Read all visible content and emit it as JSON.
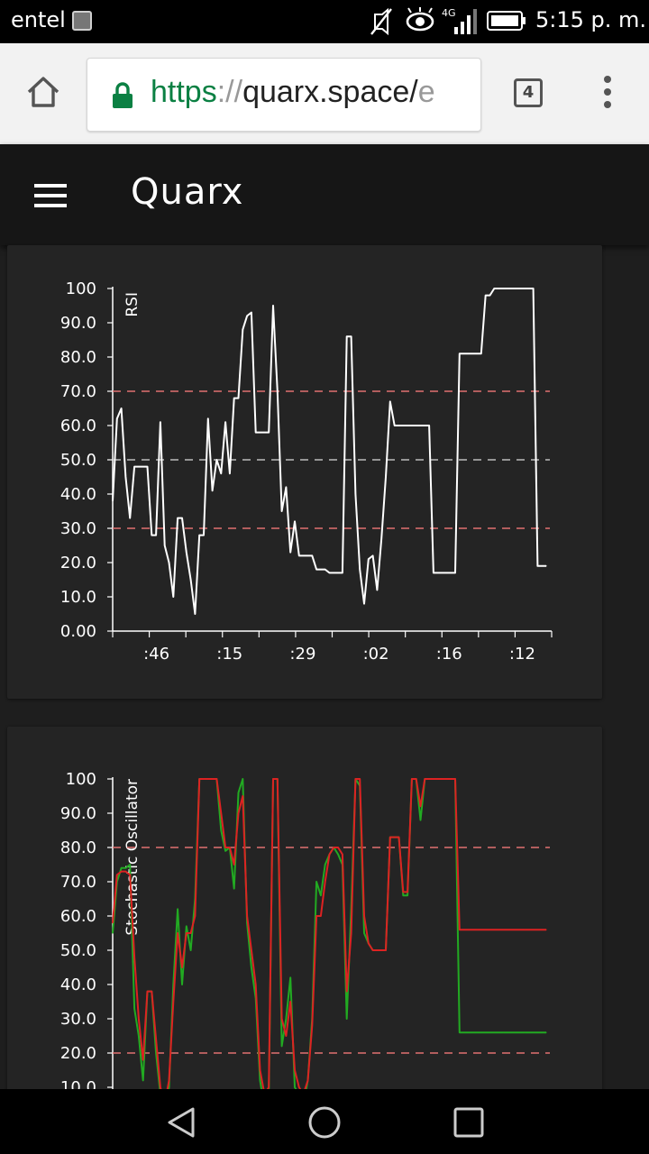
{
  "status_bar": {
    "carrier": "entel",
    "network": "4G",
    "time": "5:15 p. m.",
    "icons": [
      "sim-card-icon",
      "mute-icon",
      "eye-icon",
      "signal-icon",
      "battery-icon"
    ]
  },
  "browser": {
    "url_scheme": "https",
    "url_sep": "://",
    "url_host": "quarx.space/",
    "url_fade": "e",
    "tab_count": "4",
    "accent_color": "#0b8043"
  },
  "app": {
    "title": "Quarx",
    "background_color": "#1e1e1e",
    "card_color": "#242424"
  },
  "chart_data": [
    {
      "type": "line",
      "ylabel": "RSI",
      "ylim": [
        0,
        100
      ],
      "yticks": [
        "0.00",
        "10.0",
        "20.0",
        "30.0",
        "40.0",
        "50.0",
        "60.0",
        "70.0",
        "80.0",
        "90.0",
        "100"
      ],
      "xticks": [
        ":46",
        ":15",
        ":29",
        ":02",
        ":16",
        ":12"
      ],
      "reference_lines": [
        {
          "value": 70,
          "color": "#e07070"
        },
        {
          "value": 50,
          "color": "#bbbbbb"
        },
        {
          "value": 30,
          "color": "#e07070"
        }
      ],
      "series": [
        {
          "color": "#ffffff",
          "x": [
            0,
            1,
            2,
            3,
            4,
            5,
            6,
            7,
            8,
            9,
            10,
            11,
            12,
            13,
            14,
            15,
            16,
            17,
            18,
            19,
            20,
            21,
            22,
            23,
            24,
            25,
            26,
            27,
            28,
            29,
            30,
            31,
            32,
            33,
            34,
            35,
            36,
            37,
            38,
            39,
            40,
            41,
            42,
            43,
            44,
            45,
            46,
            47,
            48,
            49,
            50,
            51,
            52,
            53,
            54,
            55,
            56,
            57,
            58,
            59,
            60,
            61,
            62,
            63,
            64,
            65,
            66,
            67,
            68,
            69,
            70,
            71,
            72,
            73,
            74,
            75,
            76,
            77,
            78,
            79,
            80,
            81,
            82,
            83,
            84,
            85,
            86,
            87,
            88,
            89,
            90,
            91,
            92,
            93,
            94,
            95,
            96,
            97,
            98,
            99,
            100
          ],
          "y": [
            38,
            62,
            65,
            45,
            33,
            48,
            48,
            48,
            48,
            28,
            28,
            61,
            25,
            20,
            10,
            33,
            33,
            23,
            15,
            5,
            28,
            28,
            62,
            41,
            50,
            46,
            61,
            46,
            68,
            68,
            88,
            92,
            93,
            58,
            58,
            58,
            58,
            95,
            70,
            35,
            42,
            23,
            32,
            22,
            22,
            22,
            22,
            18,
            18,
            18,
            17,
            17,
            17,
            17,
            86,
            86,
            40,
            18,
            8,
            21,
            22,
            12,
            27,
            45,
            67,
            60,
            60,
            60,
            60,
            60,
            60,
            60,
            60,
            60,
            17,
            17,
            17,
            17,
            17,
            17,
            81,
            81,
            81,
            81,
            81,
            81,
            98,
            98,
            100,
            100,
            100,
            100,
            100,
            100,
            100,
            100,
            100,
            100,
            19,
            19,
            19
          ]
        }
      ]
    },
    {
      "type": "line",
      "ylabel": "Stochastic Oscillator",
      "ylim": [
        0,
        100
      ],
      "yticks": [
        "10.0",
        "20.0",
        "30.0",
        "40.0",
        "50.0",
        "60.0",
        "70.0",
        "80.0",
        "90.0",
        "100"
      ],
      "reference_lines": [
        {
          "value": 80,
          "color": "#e07070"
        },
        {
          "value": 20,
          "color": "#e07070"
        }
      ],
      "series": [
        {
          "color": "#22aa22",
          "x": [
            0,
            1,
            2,
            3,
            4,
            5,
            6,
            7,
            8,
            9,
            10,
            11,
            12,
            13,
            14,
            15,
            16,
            17,
            18,
            19,
            20,
            21,
            22,
            23,
            24,
            25,
            26,
            27,
            28,
            29,
            30,
            31,
            32,
            33,
            34,
            35,
            36,
            37,
            38,
            39,
            40,
            41,
            42,
            43,
            44,
            45,
            46,
            47,
            48,
            49,
            50,
            51,
            52,
            53,
            54,
            55,
            56,
            57,
            58,
            59,
            60,
            61,
            62,
            63,
            64,
            65,
            66,
            67,
            68,
            69,
            70,
            71,
            72,
            73,
            74,
            75,
            76,
            77,
            78,
            79,
            80,
            81,
            82,
            83,
            84,
            85,
            86,
            87,
            88,
            89,
            90,
            91,
            92,
            93,
            94,
            95,
            96,
            97,
            98,
            99,
            100
          ],
          "y": [
            55,
            70,
            74,
            74,
            75,
            33,
            25,
            12,
            38,
            38,
            20,
            8,
            3,
            10,
            40,
            62,
            40,
            57,
            50,
            65,
            100,
            100,
            100,
            100,
            100,
            85,
            79,
            80,
            68,
            96,
            100,
            58,
            45,
            36,
            12,
            4,
            8,
            100,
            100,
            22,
            30,
            42,
            10,
            8,
            5,
            12,
            30,
            70,
            66,
            75,
            78,
            80,
            78,
            75,
            30,
            62,
            100,
            98,
            55,
            52,
            50,
            50,
            50,
            50,
            83,
            83,
            83,
            66,
            66,
            100,
            100,
            88,
            100,
            100,
            100,
            100,
            100,
            100,
            100,
            100,
            26,
            26,
            26,
            26,
            26,
            26,
            26,
            26,
            26,
            26,
            26,
            26,
            26,
            26,
            26,
            26,
            26,
            26,
            26,
            26,
            26
          ]
        },
        {
          "color": "#dd2222",
          "x": [
            0,
            1,
            2,
            3,
            4,
            5,
            6,
            7,
            8,
            9,
            10,
            11,
            12,
            13,
            14,
            15,
            16,
            17,
            18,
            19,
            20,
            21,
            22,
            23,
            24,
            25,
            26,
            27,
            28,
            29,
            30,
            31,
            32,
            33,
            34,
            35,
            36,
            37,
            38,
            39,
            40,
            41,
            42,
            43,
            44,
            45,
            46,
            47,
            48,
            49,
            50,
            51,
            52,
            53,
            54,
            55,
            56,
            57,
            58,
            59,
            60,
            61,
            62,
            63,
            64,
            65,
            66,
            67,
            68,
            69,
            70,
            71,
            72,
            73,
            74,
            75,
            76,
            77,
            78,
            79,
            80,
            81,
            82,
            83,
            84,
            85,
            86,
            87,
            88,
            89,
            90,
            91,
            92,
            93,
            94,
            95,
            96,
            97,
            98,
            99,
            100
          ],
          "y": [
            58,
            72,
            73,
            73,
            72,
            48,
            30,
            18,
            38,
            38,
            24,
            10,
            5,
            12,
            35,
            55,
            45,
            55,
            55,
            60,
            100,
            100,
            100,
            100,
            100,
            90,
            80,
            80,
            75,
            90,
            95,
            60,
            50,
            40,
            15,
            8,
            10,
            100,
            100,
            30,
            25,
            35,
            15,
            10,
            8,
            12,
            28,
            60,
            60,
            70,
            78,
            80,
            80,
            78,
            38,
            55,
            100,
            100,
            60,
            52,
            50,
            50,
            50,
            50,
            83,
            83,
            83,
            67,
            67,
            100,
            100,
            92,
            100,
            100,
            100,
            100,
            100,
            100,
            100,
            100,
            56,
            56,
            56,
            56,
            56,
            56,
            56,
            56,
            56,
            56,
            56,
            56,
            56,
            56,
            56,
            56,
            56,
            56,
            56,
            56,
            56
          ]
        }
      ]
    }
  ]
}
